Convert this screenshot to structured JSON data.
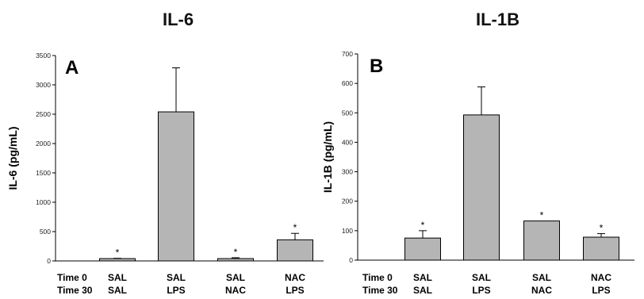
{
  "chart_data": [
    {
      "type": "bar",
      "title": "IL-6",
      "panel": "A",
      "ylabel": "IL-6 (pg/mL)",
      "ylim": [
        0,
        3500
      ],
      "yticks": [
        0,
        500,
        1000,
        1500,
        2000,
        2500,
        3000,
        3500
      ],
      "row_labels": [
        "Time 0",
        "Time 30"
      ],
      "categories": [
        {
          "t0": "SAL",
          "t30": "SAL"
        },
        {
          "t0": "SAL",
          "t30": "LPS"
        },
        {
          "t0": "SAL",
          "t30": "NAC"
        },
        {
          "t0": "NAC",
          "t30": "LPS"
        }
      ],
      "values": [
        40,
        2540,
        40,
        360
      ],
      "errors": [
        5,
        750,
        15,
        110
      ],
      "significant": [
        "*",
        "",
        "*",
        "*"
      ],
      "bar_color": "#b5b5b5"
    },
    {
      "type": "bar",
      "title": "IL-1B",
      "panel": "B",
      "ylabel": "IL-1B (pg/mL)",
      "ylim": [
        0,
        700
      ],
      "yticks": [
        0,
        100,
        200,
        300,
        400,
        500,
        600,
        700
      ],
      "row_labels": [
        "Time 0",
        "Time 30"
      ],
      "categories": [
        {
          "t0": "SAL",
          "t30": "SAL"
        },
        {
          "t0": "SAL",
          "t30": "LPS"
        },
        {
          "t0": "SAL",
          "t30": "NAC"
        },
        {
          "t0": "NAC",
          "t30": "LPS"
        }
      ],
      "values": [
        75,
        493,
        133,
        78
      ],
      "errors": [
        25,
        95,
        0,
        12
      ],
      "significant": [
        "*",
        "",
        "*",
        "*"
      ],
      "bar_color": "#b5b5b5"
    }
  ]
}
